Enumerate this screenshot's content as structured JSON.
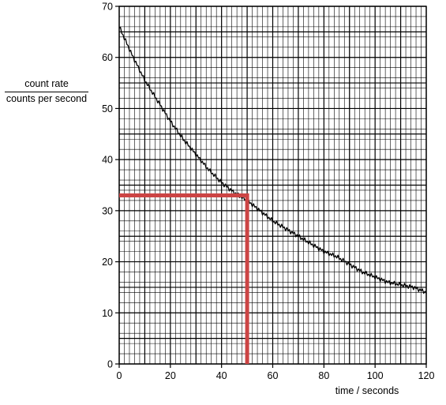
{
  "chart_data": {
    "type": "line",
    "title": "",
    "ylabel_top": "count rate",
    "ylabel_bottom": "counts per second",
    "xlabel": "time / seconds",
    "xlim": [
      0,
      120
    ],
    "ylim": [
      0,
      70
    ],
    "x_ticks": [
      0,
      20,
      40,
      60,
      80,
      100,
      120
    ],
    "y_ticks": [
      0,
      10,
      20,
      30,
      40,
      50,
      60,
      70
    ],
    "grid": true,
    "grid_minor_x": 2,
    "grid_minor_y": 2,
    "series": [
      {
        "x": [
          0,
          5,
          10,
          15,
          20,
          25,
          30,
          35,
          40,
          45,
          50,
          55,
          60,
          65,
          70,
          75,
          80,
          85,
          90,
          95,
          100,
          105,
          110,
          115,
          120
        ],
        "y": [
          66,
          60.5,
          55.5,
          51.5,
          47.5,
          44,
          41,
          38,
          35.5,
          33.5,
          32,
          30,
          28,
          26.5,
          25,
          23.5,
          22,
          21,
          19.5,
          18,
          17,
          16,
          15.5,
          15,
          14
        ],
        "color": "#000000"
      }
    ],
    "reference_lines": {
      "value_x": 50,
      "value_y": 33,
      "color": "#cc4444"
    }
  }
}
